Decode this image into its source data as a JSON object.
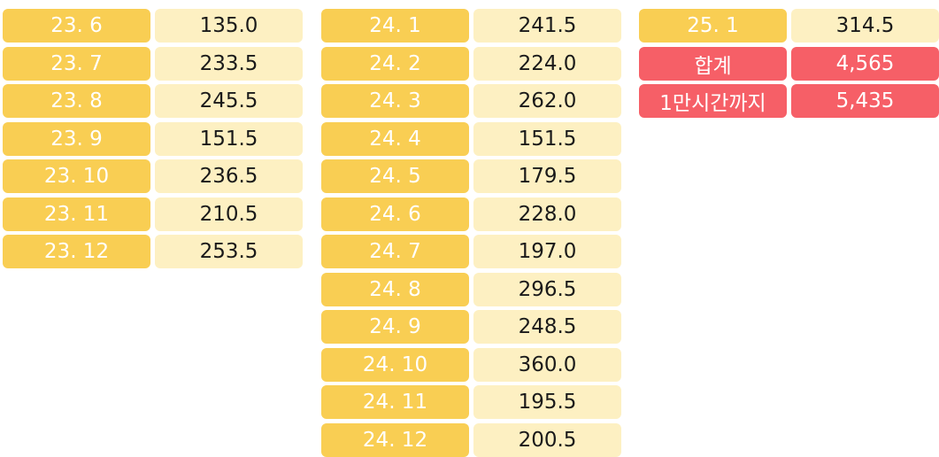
{
  "colors": {
    "label_bg": "#f9ce53",
    "value_bg": "#fdf0c2",
    "summary_bg": "#f65f67",
    "label_text": "#ffffff",
    "value_text": "#1a1a1a",
    "summary_text": "#ffffff"
  },
  "tables": [
    {
      "rows": [
        {
          "label": "23. 6",
          "value": "135.0"
        },
        {
          "label": "23. 7",
          "value": "233.5"
        },
        {
          "label": "23. 8",
          "value": "245.5"
        },
        {
          "label": "23. 9",
          "value": "151.5"
        },
        {
          "label": "23. 10",
          "value": "236.5"
        },
        {
          "label": "23. 11",
          "value": "210.5"
        },
        {
          "label": "23. 12",
          "value": "253.5"
        }
      ]
    },
    {
      "rows": [
        {
          "label": "24. 1",
          "value": "241.5"
        },
        {
          "label": "24. 2",
          "value": "224.0"
        },
        {
          "label": "24. 3",
          "value": "262.0"
        },
        {
          "label": "24. 4",
          "value": "151.5"
        },
        {
          "label": "24. 5",
          "value": "179.5"
        },
        {
          "label": "24. 6",
          "value": "228.0"
        },
        {
          "label": "24. 7",
          "value": "197.0"
        },
        {
          "label": "24. 8",
          "value": "296.5"
        },
        {
          "label": "24. 9",
          "value": "248.5"
        },
        {
          "label": "24. 10",
          "value": "360.0"
        },
        {
          "label": "24. 11",
          "value": "195.5"
        },
        {
          "label": "24. 12",
          "value": "200.5"
        }
      ]
    },
    {
      "rows": [
        {
          "label": "25. 1",
          "value": "314.5"
        },
        {
          "label": "합계",
          "value": "4,565",
          "summary": true
        },
        {
          "label": "1만시간까지",
          "value": "5,435",
          "summary": true
        }
      ]
    }
  ]
}
